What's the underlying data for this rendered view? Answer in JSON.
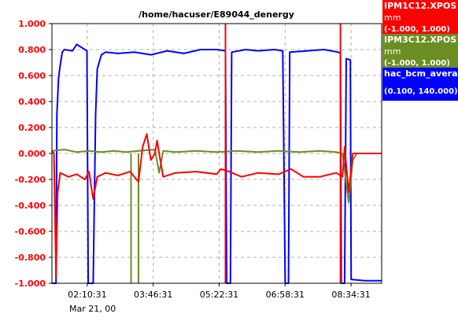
{
  "chart_data": {
    "type": "line",
    "title": "/home/hacuser/E89044_denergy",
    "ylim": [
      -1.0,
      1.0
    ],
    "y_ticks": [
      "1.000",
      "0.800",
      "0.600",
      "0.400",
      "0.200",
      "0.000",
      "-0.200",
      "-0.400",
      "-0.600",
      "-0.800",
      "-1.000"
    ],
    "y_tick_values": [
      1.0,
      0.8,
      0.6,
      0.4,
      0.2,
      0.0,
      -0.2,
      -0.4,
      -0.6,
      -0.8,
      -1.0
    ],
    "x_ticks": [
      "02:10:31",
      "03:46:31",
      "05:22:31",
      "06:58:31",
      "08:34:31"
    ],
    "x_tick_values": [
      0.8571,
      2.4571,
      4.0571,
      5.6571,
      7.2571
    ],
    "x_range": [
      0.0,
      8.0
    ],
    "x_sublabel": "Mar 21, 00",
    "grid": true,
    "series": [
      {
        "name": "IPM1C12.XPOS",
        "unit": "mm",
        "range": "(-1.000, 1.000)",
        "color": "#ff0000",
        "points": [
          [
            0.0,
            0.02
          ],
          [
            0.05,
            0.0
          ],
          [
            0.1,
            -0.95
          ],
          [
            0.14,
            -0.3
          ],
          [
            0.2,
            -0.15
          ],
          [
            0.4,
            -0.18
          ],
          [
            0.6,
            -0.16
          ],
          [
            0.8,
            -0.2
          ],
          [
            0.9,
            -0.14
          ],
          [
            1.0,
            -0.35
          ],
          [
            1.1,
            -0.18
          ],
          [
            1.3,
            -0.15
          ],
          [
            1.6,
            -0.17
          ],
          [
            1.9,
            -0.14
          ],
          [
            2.1,
            -0.22
          ],
          [
            2.2,
            0.05
          ],
          [
            2.3,
            0.15
          ],
          [
            2.4,
            -0.05
          ],
          [
            2.5,
            0.0
          ],
          [
            2.55,
            0.1
          ],
          [
            2.6,
            0.0
          ],
          [
            2.7,
            -0.18
          ],
          [
            3.0,
            -0.15
          ],
          [
            3.5,
            -0.14
          ],
          [
            4.0,
            -0.16
          ],
          [
            4.1,
            -0.12
          ],
          [
            4.3,
            -0.14
          ],
          [
            4.6,
            -0.18
          ],
          [
            5.0,
            -0.15
          ],
          [
            5.5,
            -0.16
          ],
          [
            5.8,
            -0.12
          ],
          [
            6.1,
            -0.18
          ],
          [
            6.5,
            -0.18
          ],
          [
            6.9,
            -0.15
          ],
          [
            7.05,
            -0.18
          ],
          [
            7.1,
            0.05
          ],
          [
            7.2,
            -0.3
          ],
          [
            7.3,
            0.0
          ],
          [
            7.4,
            0.0
          ],
          [
            7.6,
            0.0
          ],
          [
            7.8,
            0.0
          ],
          [
            8.0,
            0.0
          ]
        ],
        "spikes": [
          4.21,
          7.0
        ]
      },
      {
        "name": "IPM3C12.XPOS",
        "unit": "mm",
        "range": "(-1.000, 1.000)",
        "color": "#6b8e23",
        "points": [
          [
            0.0,
            0.02
          ],
          [
            0.3,
            0.03
          ],
          [
            0.6,
            0.01
          ],
          [
            0.9,
            0.02
          ],
          [
            1.2,
            0.01
          ],
          [
            1.5,
            0.02
          ],
          [
            1.8,
            0.01
          ],
          [
            2.1,
            0.02
          ],
          [
            2.5,
            0.03
          ],
          [
            2.6,
            -0.15
          ],
          [
            2.7,
            0.02
          ],
          [
            3.0,
            0.01
          ],
          [
            3.5,
            0.02
          ],
          [
            4.0,
            0.01
          ],
          [
            4.5,
            0.02
          ],
          [
            5.0,
            0.01
          ],
          [
            5.5,
            0.02
          ],
          [
            6.0,
            0.01
          ],
          [
            6.5,
            0.02
          ],
          [
            6.9,
            0.01
          ],
          [
            7.05,
            0.0
          ],
          [
            7.2,
            -0.38
          ],
          [
            7.3,
            -0.05
          ],
          [
            7.4,
            0.0
          ]
        ],
        "dropouts": [
          1.92,
          2.1
        ]
      },
      {
        "name": "hac_bcm_avera",
        "unit": "",
        "range": "(0.100, 140.000)",
        "color": "#0000ff",
        "points": [
          [
            0.0,
            -1.0
          ],
          [
            0.1,
            -1.0
          ],
          [
            0.12,
            0.3
          ],
          [
            0.16,
            0.58
          ],
          [
            0.2,
            0.68
          ],
          [
            0.25,
            0.78
          ],
          [
            0.3,
            0.8
          ],
          [
            0.5,
            0.79
          ],
          [
            0.6,
            0.84
          ],
          [
            0.8,
            0.8
          ],
          [
            0.85,
            0.79
          ],
          [
            0.88,
            -1.0
          ],
          [
            1.0,
            -1.0
          ],
          [
            1.06,
            0.3
          ],
          [
            1.1,
            0.65
          ],
          [
            1.2,
            0.76
          ],
          [
            1.3,
            0.78
          ],
          [
            1.6,
            0.77
          ],
          [
            2.0,
            0.78
          ],
          [
            2.4,
            0.76
          ],
          [
            2.8,
            0.79
          ],
          [
            3.2,
            0.77
          ],
          [
            3.6,
            0.8
          ],
          [
            4.0,
            0.8
          ],
          [
            4.21,
            0.79
          ],
          [
            4.24,
            -1.0
          ],
          [
            4.33,
            -1.0
          ],
          [
            4.36,
            0.78
          ],
          [
            4.7,
            0.8
          ],
          [
            5.0,
            0.79
          ],
          [
            5.4,
            0.8
          ],
          [
            5.6,
            0.79
          ],
          [
            5.66,
            -1.0
          ],
          [
            5.74,
            -1.0
          ],
          [
            5.77,
            0.78
          ],
          [
            6.2,
            0.79
          ],
          [
            6.6,
            0.8
          ],
          [
            6.95,
            0.78
          ],
          [
            7.0,
            0.77
          ],
          [
            7.02,
            -1.0
          ],
          [
            7.1,
            -1.0
          ],
          [
            7.14,
            0.73
          ],
          [
            7.24,
            0.72
          ],
          [
            7.26,
            -0.97
          ],
          [
            7.6,
            -0.98
          ],
          [
            8.0,
            -0.98
          ]
        ]
      }
    ]
  }
}
